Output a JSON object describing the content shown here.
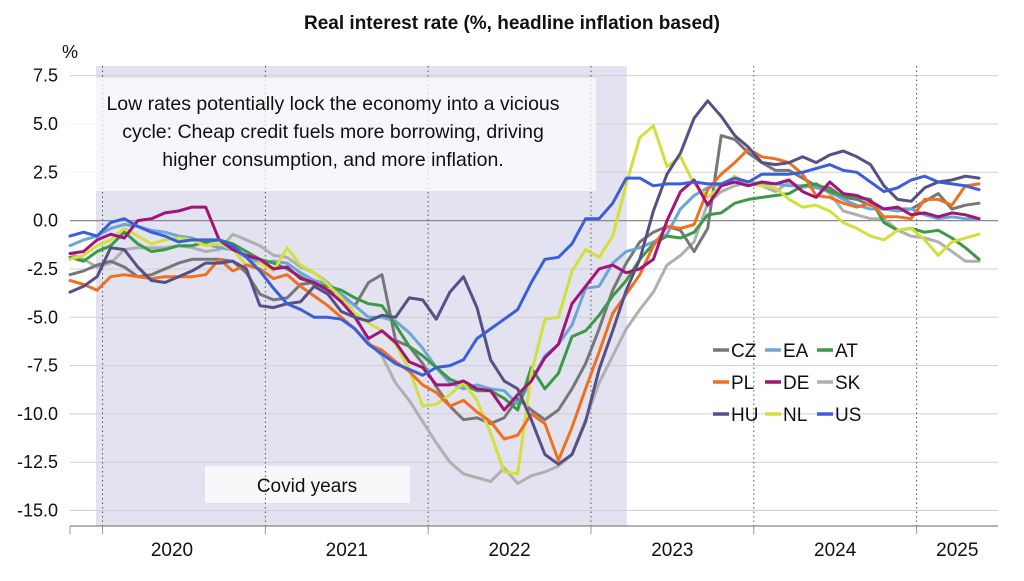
{
  "chart_data": {
    "type": "line",
    "title": "Real interest rate (%, headline inflation based)",
    "ylabel": "%",
    "ylim": [
      -15.8,
      8.0
    ],
    "yticks": [
      "7.5",
      "5.0",
      "2.5",
      "0.0",
      "-2.5",
      "-5.0",
      "-7.5",
      "-10.0",
      "-12.5",
      "-15.0"
    ],
    "ytick_values": [
      7.5,
      5.0,
      2.5,
      0.0,
      -2.5,
      -5.0,
      -7.5,
      -10.0,
      -12.5,
      -15.0
    ],
    "x_start_year": 2019.8,
    "xlim": [
      2019.8,
      2025.5
    ],
    "xticks": [
      "2020",
      "2021",
      "2022",
      "2023",
      "2024",
      "2025"
    ],
    "grid": true,
    "legend_position": "center-right",
    "shaded_region": {
      "label": "Covid years",
      "x0": 2019.96,
      "x1": 2023.22,
      "color": "#e2e2f0"
    },
    "annotation": "Low rates potentially lock the economy into a vicious cycle: Cheap credit fuels more borrowing, driving higher consumption, and more inflation.",
    "annotation_lines": [
      "Low rates potentially lock the economy into a vicious",
      "cycle: Cheap credit fuels more borrowing, driving",
      "higher consumption, and more inflation."
    ],
    "series": [
      {
        "name": "CZ",
        "color": "#777777",
        "values": [
          -2.8,
          -2.6,
          -2.3,
          -2.1,
          -2.4,
          -2.9,
          -2.8,
          -2.5,
          -2.2,
          -2.0,
          -2.0,
          -2.0,
          -2.1,
          -2.7,
          -3.8,
          -4.1,
          -4.0,
          -3.3,
          -3.2,
          -3.6,
          -3.8,
          -4.4,
          -3.2,
          -2.8,
          -6.2,
          -6.5,
          -7.4,
          -8.6,
          -9.6,
          -10.3,
          -10.2,
          -10.5,
          -10.2,
          -9.2,
          -9.8,
          -10.3,
          -9.8,
          -8.7,
          -7.4,
          -5.6,
          -3.6,
          -2.2,
          -1.1,
          -0.6,
          -0.3,
          -0.5,
          -1.6,
          -0.4,
          4.4,
          4.2,
          3.5,
          3.0,
          2.6,
          2.6,
          2.2,
          1.8,
          1.7,
          1.2,
          1.1,
          0.8,
          0.6,
          0.6,
          0.6,
          1.0,
          1.4,
          0.6,
          0.8,
          0.9
        ]
      },
      {
        "name": "EA",
        "color": "#6ba6d6",
        "values": [
          -1.3,
          -1.0,
          -0.8,
          -0.4,
          -0.2,
          -0.3,
          -0.5,
          -0.6,
          -0.8,
          -0.9,
          -1.2,
          -1.4,
          -1.5,
          -1.9,
          -2.2,
          -2.1,
          -2.2,
          -2.7,
          -3.1,
          -3.3,
          -3.8,
          -4.4,
          -5.0,
          -5.0,
          -5.2,
          -5.8,
          -6.6,
          -7.6,
          -8.4,
          -8.7,
          -8.5,
          -8.7,
          -8.8,
          -9.5,
          -8.3,
          -7.0,
          -6.4,
          -5.4,
          -3.5,
          -3.4,
          -2.2,
          -1.6,
          -1.4,
          -1.1,
          -0.7,
          0.6,
          1.3,
          1.7,
          1.9,
          2.0,
          2.0,
          1.9,
          1.9,
          1.8,
          1.8,
          1.7,
          1.5,
          1.1,
          0.8,
          0.6,
          0.6,
          0.5,
          0.6,
          0.3,
          0.1,
          0.2,
          0.1,
          0.1
        ]
      },
      {
        "name": "AT",
        "color": "#3a9a45",
        "values": [
          -1.9,
          -2.1,
          -1.6,
          -1.3,
          -0.6,
          -1.2,
          -1.6,
          -1.5,
          -1.3,
          -1.3,
          -1.1,
          -1.0,
          -1.2,
          -1.6,
          -2.0,
          -2.2,
          -2.5,
          -2.9,
          -3.3,
          -3.4,
          -3.6,
          -4.0,
          -4.3,
          -4.4,
          -5.4,
          -6.5,
          -7.0,
          -7.6,
          -8.2,
          -8.5,
          -8.8,
          -8.8,
          -9.2,
          -9.8,
          -7.6,
          -8.7,
          -7.9,
          -6.0,
          -5.7,
          -4.9,
          -3.9,
          -3.1,
          -2.0,
          -1.2,
          -0.8,
          -0.9,
          -0.6,
          0.3,
          0.4,
          0.9,
          1.1,
          1.2,
          1.3,
          1.4,
          1.8,
          1.9,
          1.5,
          1.3,
          1.2,
          1.1,
          -0.1,
          -0.5,
          -0.4,
          -0.6,
          -0.5,
          -0.9,
          -1.4,
          -2.0
        ]
      },
      {
        "name": "PL",
        "color": "#f07020",
        "values": [
          -3.1,
          -3.3,
          -3.6,
          -2.9,
          -2.8,
          -2.9,
          -3.0,
          -2.9,
          -2.9,
          -2.9,
          -2.8,
          -2.0,
          -2.6,
          -2.3,
          -2.5,
          -3.0,
          -2.8,
          -3.4,
          -3.9,
          -4.4,
          -5.0,
          -5.6,
          -6.4,
          -6.7,
          -7.3,
          -7.8,
          -8.5,
          -8.9,
          -9.6,
          -9.3,
          -9.9,
          -10.4,
          -11.3,
          -11.1,
          -10.0,
          -10.5,
          -12.4,
          -10.7,
          -8.7,
          -6.8,
          -4.8,
          -3.8,
          -2.8,
          -1.3,
          -0.3,
          -0.4,
          -0.2,
          1.6,
          2.4,
          3.0,
          3.7,
          3.3,
          3.2,
          3.0,
          2.4,
          1.3,
          1.2,
          0.9,
          0.7,
          0.9,
          0.2,
          0.2,
          0.1,
          1.1,
          1.1,
          0.8,
          1.8,
          1.9
        ]
      },
      {
        "name": "DE",
        "color": "#a3147a",
        "values": [
          -1.7,
          -1.6,
          -1.0,
          -0.7,
          -0.9,
          0.0,
          0.1,
          0.4,
          0.5,
          0.7,
          0.7,
          -1.0,
          -1.5,
          -1.8,
          -2.0,
          -2.5,
          -2.4,
          -3.0,
          -3.2,
          -3.6,
          -4.2,
          -5.0,
          -6.1,
          -5.7,
          -6.3,
          -7.3,
          -7.6,
          -8.5,
          -8.5,
          -8.3,
          -8.7,
          -8.8,
          -9.8,
          -9.0,
          -8.3,
          -7.1,
          -6.4,
          -4.3,
          -3.4,
          -2.5,
          -2.3,
          -2.7,
          -2.5,
          -2.0,
          0.0,
          1.5,
          2.1,
          0.8,
          1.8,
          2.0,
          1.8,
          2.0,
          1.9,
          2.1,
          1.5,
          1.2,
          2.0,
          1.4,
          1.3,
          1.0,
          0.6,
          0.7,
          0.3,
          0.4,
          0.2,
          0.4,
          0.3,
          0.1
        ]
      },
      {
        "name": "SK",
        "color": "#b0b0b0",
        "values": [
          -1.7,
          -2.0,
          -2.4,
          -2.2,
          -1.5,
          -1.4,
          -1.4,
          -1.4,
          -1.3,
          -1.4,
          -1.6,
          -1.5,
          -0.7,
          -1.0,
          -1.3,
          -1.8,
          -1.9,
          -2.4,
          -2.7,
          -3.2,
          -3.9,
          -4.8,
          -6.3,
          -7.0,
          -8.4,
          -9.3,
          -10.4,
          -11.5,
          -12.5,
          -13.1,
          -13.3,
          -13.5,
          -12.8,
          -13.6,
          -13.2,
          -13.0,
          -12.7,
          -12.1,
          -10.3,
          -8.4,
          -7.0,
          -5.6,
          -4.6,
          -3.7,
          -2.3,
          -1.8,
          -1.1,
          0.9,
          1.5,
          1.8,
          2.0,
          1.8,
          1.5,
          2.0,
          1.7,
          1.9,
          1.4,
          0.5,
          0.3,
          0.1,
          0.1,
          -0.5,
          -0.8,
          -0.9,
          -1.1,
          -1.6,
          -2.1,
          -2.1
        ]
      },
      {
        "name": "HU",
        "color": "#565087",
        "values": [
          -3.7,
          -3.4,
          -2.9,
          -1.4,
          -1.5,
          -2.4,
          -3.1,
          -3.2,
          -2.9,
          -2.6,
          -2.2,
          -2.2,
          -2.1,
          -2.5,
          -4.4,
          -4.5,
          -4.3,
          -4.2,
          -3.4,
          -3.8,
          -4.7,
          -5.0,
          -5.2,
          -4.9,
          -5.0,
          -4.0,
          -4.1,
          -5.1,
          -3.7,
          -2.9,
          -4.5,
          -7.2,
          -8.3,
          -8.7,
          -10.3,
          -12.1,
          -12.6,
          -12.1,
          -10.4,
          -7.7,
          -5.7,
          -3.6,
          -2.0,
          0.5,
          2.4,
          3.5,
          5.3,
          6.2,
          5.4,
          4.4,
          3.8,
          3.0,
          2.9,
          3.0,
          3.3,
          3.0,
          3.4,
          3.6,
          3.3,
          2.9,
          1.8,
          1.1,
          1.0,
          1.7,
          2.0,
          2.1,
          2.3,
          2.2
        ]
      },
      {
        "name": "NL",
        "color": "#d4df3b",
        "values": [
          -2.0,
          -1.8,
          -1.3,
          -1.0,
          -0.4,
          -0.8,
          -1.2,
          -1.0,
          -0.9,
          -1.0,
          -1.3,
          -1.2,
          -1.5,
          -2.3,
          -2.2,
          -2.6,
          -1.4,
          -2.3,
          -2.7,
          -3.3,
          -4.0,
          -4.8,
          -5.3,
          -5.7,
          -6.4,
          -7.7,
          -9.6,
          -9.5,
          -9.0,
          -8.4,
          -9.3,
          -11.0,
          -13.0,
          -13.1,
          -7.9,
          -5.1,
          -5.0,
          -2.6,
          -1.5,
          -1.9,
          -0.8,
          1.9,
          4.3,
          4.9,
          2.8,
          3.3,
          1.9,
          1.2,
          1.8,
          2.3,
          1.9,
          1.8,
          1.7,
          1.1,
          0.7,
          0.8,
          0.5,
          -0.1,
          -0.4,
          -0.8,
          -1.0,
          -0.5,
          -0.4,
          -1.0,
          -1.8,
          -1.1,
          -0.9,
          -0.7
        ]
      },
      {
        "name": "US",
        "color": "#3a5fd8",
        "values": [
          -0.8,
          -0.6,
          -0.8,
          -0.1,
          0.1,
          -0.3,
          -0.6,
          -0.8,
          -1.1,
          -1.0,
          -1.0,
          -1.0,
          -1.3,
          -1.9,
          -2.6,
          -3.5,
          -4.3,
          -4.6,
          -5.0,
          -5.0,
          -5.1,
          -5.6,
          -6.4,
          -6.9,
          -7.4,
          -7.7,
          -8.0,
          -7.6,
          -7.5,
          -7.2,
          -6.1,
          -5.6,
          -5.1,
          -4.6,
          -3.2,
          -2.0,
          -1.9,
          -1.2,
          0.1,
          0.1,
          0.9,
          2.2,
          2.2,
          1.8,
          1.9,
          1.9,
          2.0,
          1.9,
          1.9,
          2.2,
          2.0,
          2.4,
          2.4,
          2.4,
          2.5,
          2.7,
          2.9,
          2.6,
          2.5,
          2.0,
          1.5,
          1.7,
          2.1,
          2.3,
          2.0,
          1.9,
          1.8,
          1.6
        ]
      }
    ]
  }
}
